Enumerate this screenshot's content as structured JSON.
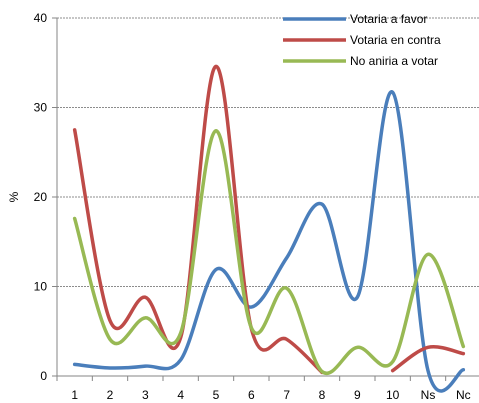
{
  "chart_data": {
    "type": "line",
    "title": "",
    "xlabel": "",
    "ylabel": "%",
    "categories": [
      "1",
      "2",
      "3",
      "4",
      "5",
      "6",
      "7",
      "8",
      "9",
      "10",
      "Ns",
      "Nc"
    ],
    "ylim": [
      0,
      40
    ],
    "yticks": [
      0,
      10,
      20,
      30,
      40
    ],
    "grid": true,
    "smooth": true,
    "legend_position": "top-right",
    "series": [
      {
        "name": "Votaria a favor",
        "color": "#4a7ebb",
        "values": [
          1.3,
          0.9,
          1.1,
          1.8,
          11.9,
          7.7,
          13.2,
          19.2,
          8.8,
          31.7,
          0.6,
          0.7
        ]
      },
      {
        "name": "Votaria en contra",
        "color": "#be4b48",
        "values": [
          27.5,
          6.2,
          8.8,
          4.3,
          34.6,
          5.3,
          4.1,
          0.4,
          null,
          0.6,
          3.2,
          2.5
        ]
      },
      {
        "name": "No aniria a votar",
        "color": "#98b954",
        "values": [
          17.6,
          4.1,
          6.5,
          4.8,
          27.4,
          5.4,
          9.8,
          0.5,
          3.2,
          1.6,
          13.6,
          3.3
        ]
      }
    ]
  }
}
